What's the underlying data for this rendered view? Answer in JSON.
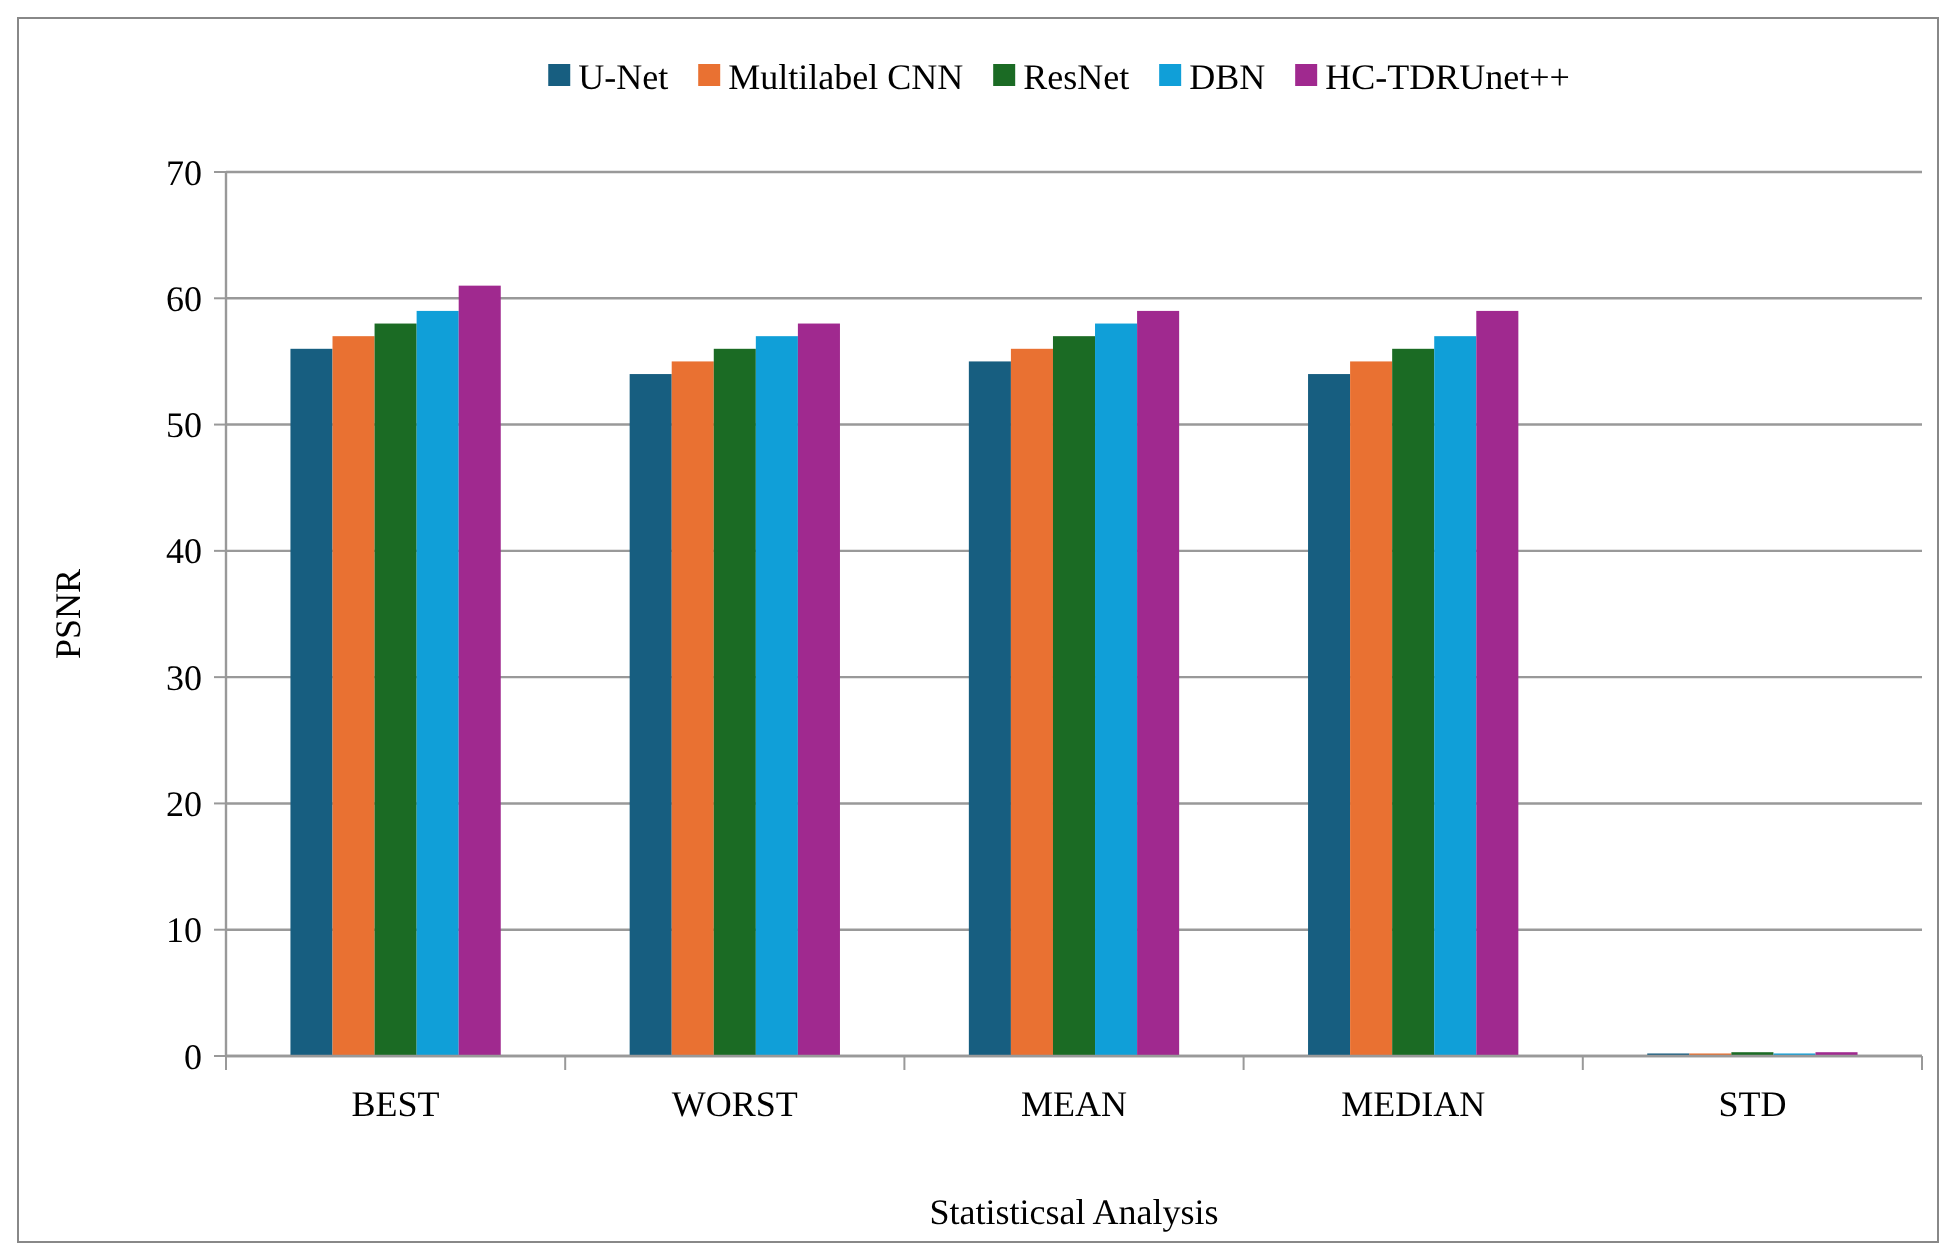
{
  "chart_data": {
    "type": "bar",
    "xlabel": "Statisticsal Analysis",
    "ylabel": "PSNR",
    "categories": [
      "BEST",
      "WORST",
      "MEAN",
      "MEDIAN",
      "STD"
    ],
    "series": [
      {
        "name": "U-Net",
        "color": "#175e80",
        "values": [
          56,
          54,
          55,
          54,
          0.2
        ]
      },
      {
        "name": "Multilabel CNN",
        "color": "#e97132",
        "values": [
          57,
          55,
          56,
          55,
          0.2
        ]
      },
      {
        "name": "ResNet",
        "color": "#1b6b24",
        "values": [
          58,
          56,
          57,
          56,
          0.3
        ]
      },
      {
        "name": "DBN",
        "color": "#109fd8",
        "values": [
          59,
          57,
          58,
          57,
          0.2
        ]
      },
      {
        "name": "HC-TDRUnet++",
        "color": "#a0298f",
        "values": [
          61,
          58,
          59,
          59,
          0.3
        ]
      }
    ],
    "ylim": [
      0,
      70
    ],
    "yticks": [
      0,
      10,
      20,
      30,
      40,
      50,
      60,
      70
    ],
    "grid": "y",
    "legend": "top"
  }
}
